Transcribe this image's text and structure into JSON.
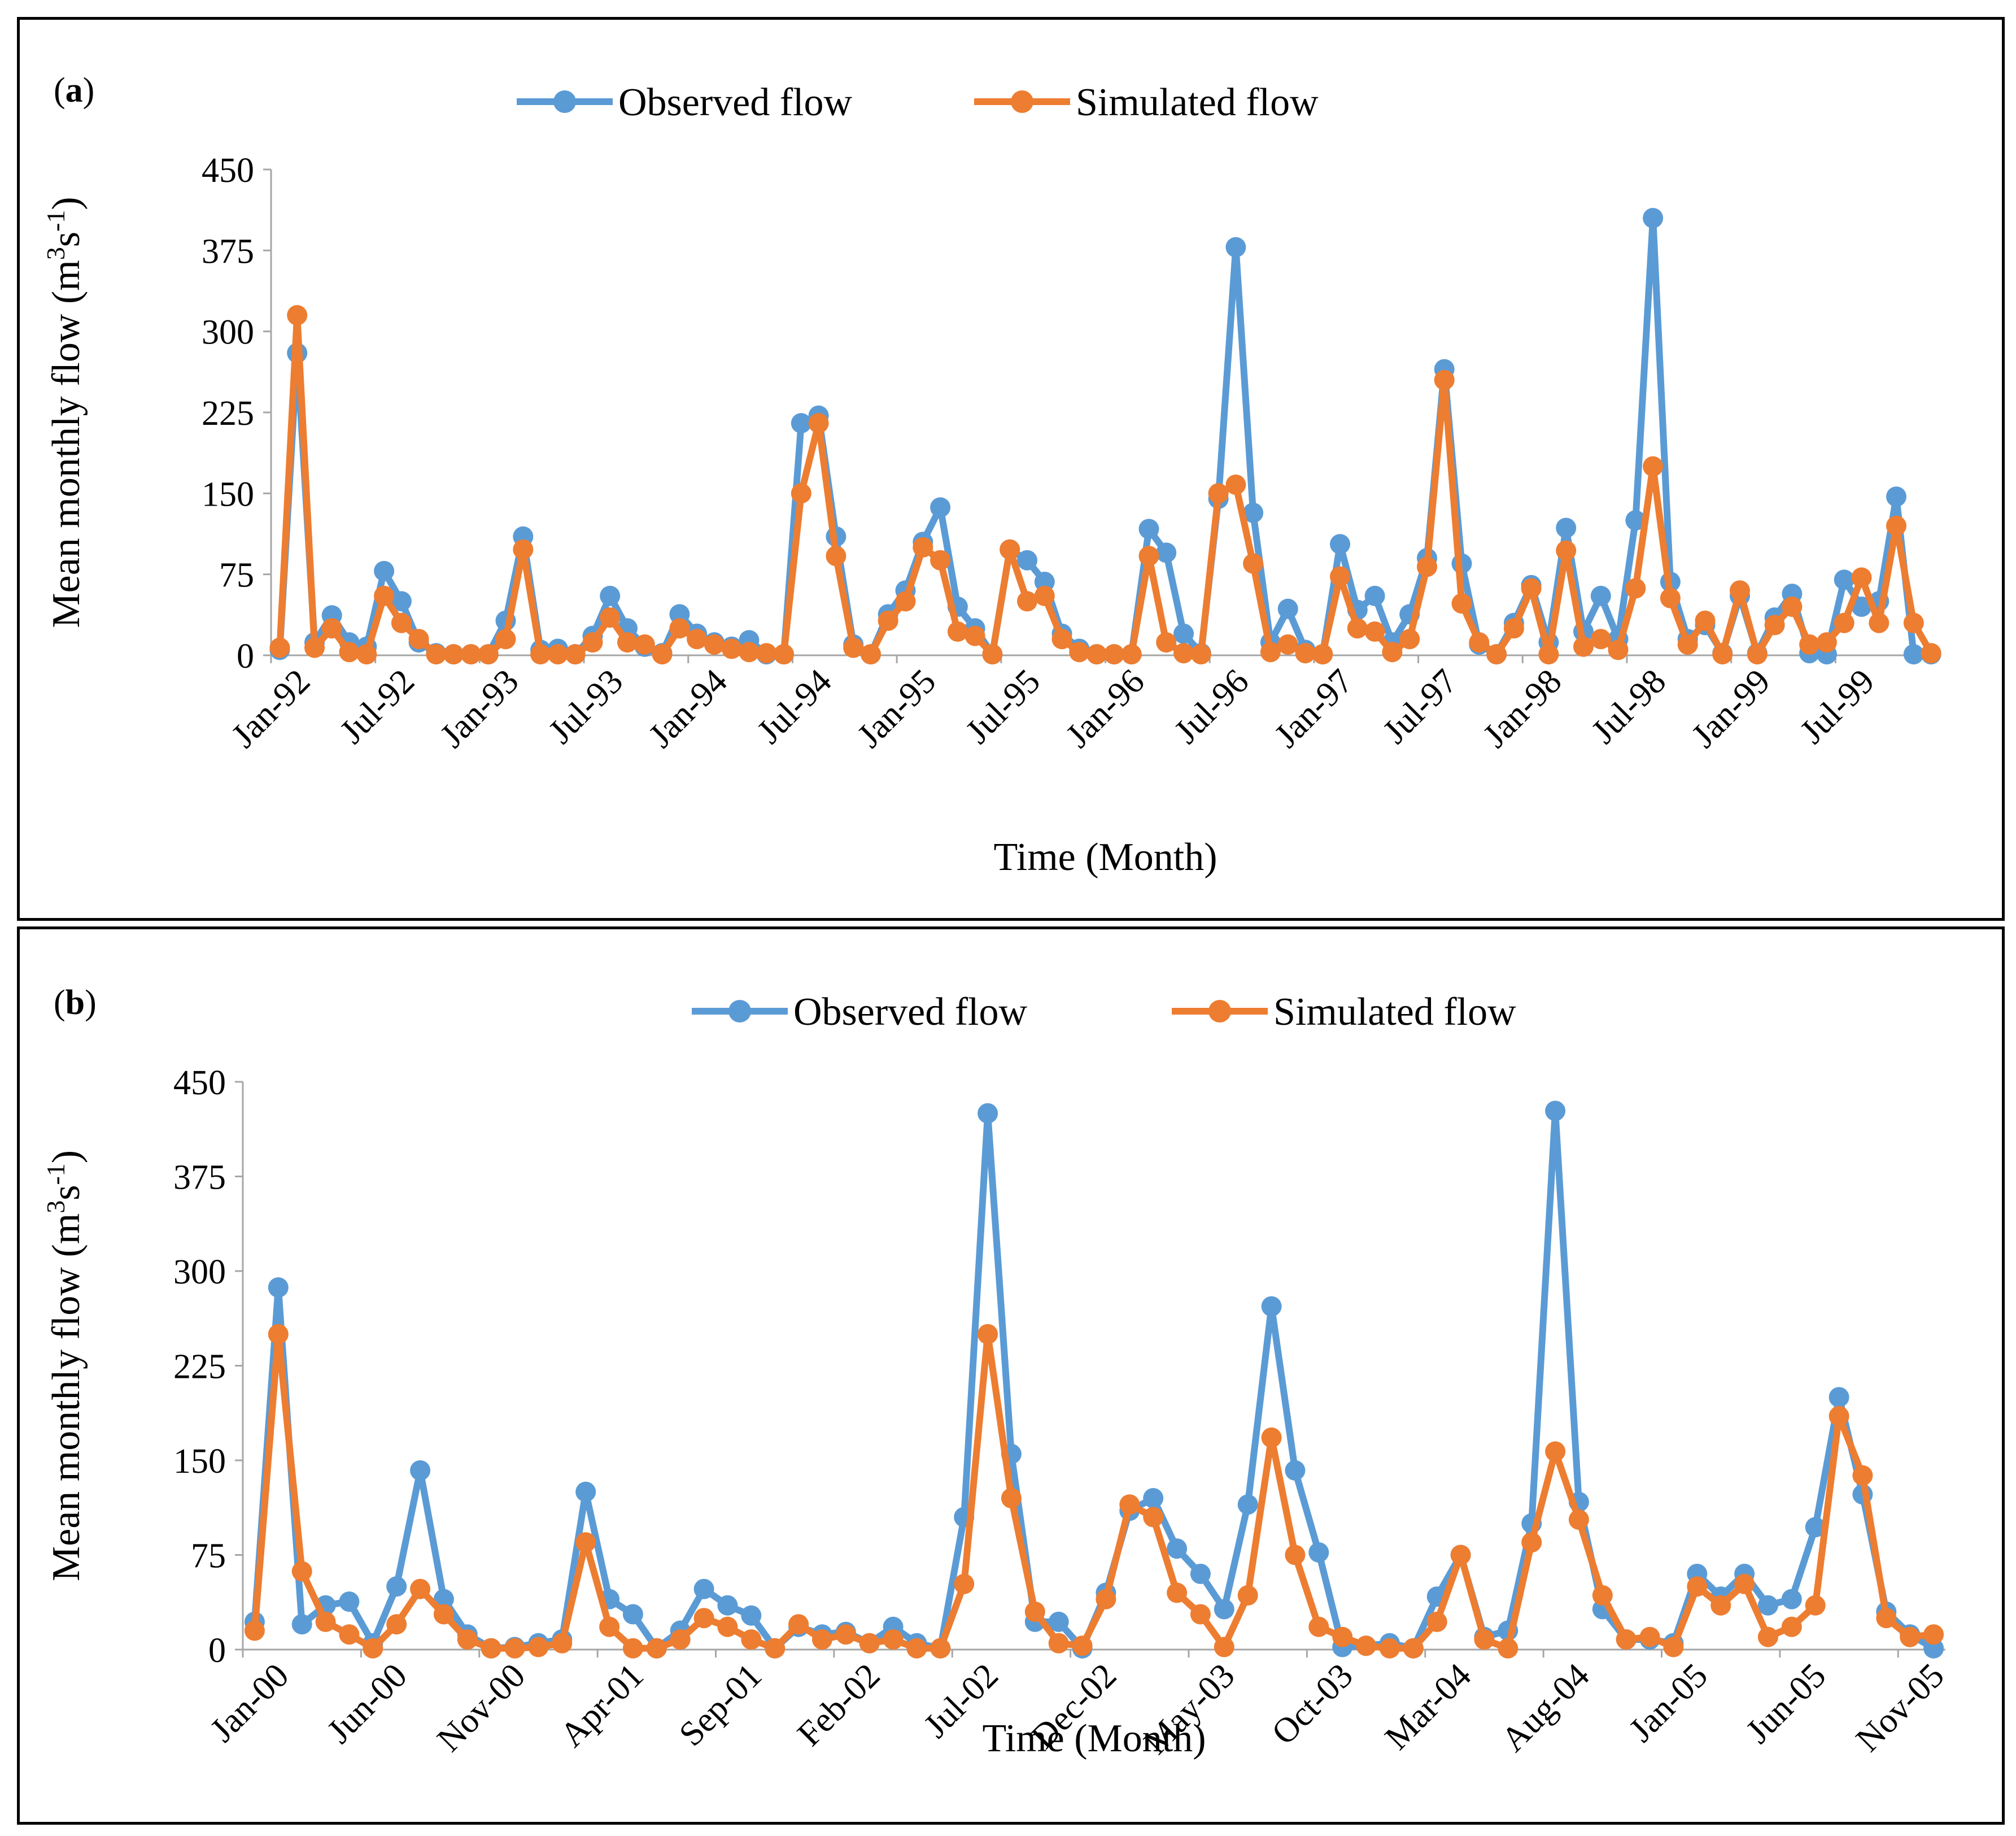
{
  "colors": {
    "observed": "#5B9BD5",
    "simulated": "#ED7D31",
    "axis": "#A6A6A6"
  },
  "chart_data": [
    {
      "type": "line",
      "panel_label": "a",
      "title": "",
      "xlabel": "Time (Month)",
      "ylabel": "Mean monthly flow (m3s-1)",
      "ylabel_parts": {
        "main": "Mean monthly flow (m",
        "sup1": "3",
        "mid": "s",
        "sup2": "-1",
        "end": ")"
      },
      "ylim": [
        0,
        450
      ],
      "yticks": [
        0,
        75,
        150,
        225,
        300,
        375,
        450
      ],
      "legend": [
        "Observed flow",
        "Simulated flow"
      ],
      "x_tick_labels": [
        "Jan-92",
        "Jul-92",
        "Jan-93",
        "Jul-93",
        "Jan-94",
        "Jul-94",
        "Jan-95",
        "Jul-95",
        "Jan-96",
        "Jul-96",
        "Jan-97",
        "Jul-97",
        "Jan-98",
        "Jul-98",
        "Jan-99",
        "Jul-99"
      ],
      "tick_step": 6,
      "series": [
        {
          "name": "Observed flow",
          "values": [
            5,
            280,
            12,
            37,
            12,
            8,
            78,
            50,
            12,
            2,
            1,
            1,
            1,
            32,
            110,
            5,
            6,
            1,
            18,
            55,
            25,
            8,
            2,
            38,
            20,
            12,
            8,
            14,
            1,
            1,
            215,
            222,
            110,
            10,
            1,
            38,
            60,
            105,
            137,
            45,
            25,
            1,
            98,
            88,
            68,
            20,
            6,
            1,
            1,
            1,
            117,
            95,
            20,
            2,
            145,
            378,
            132,
            12,
            43,
            5,
            1,
            103,
            42,
            55,
            12,
            38,
            90,
            265,
            85,
            10,
            1,
            30,
            65,
            12,
            118,
            22,
            55,
            15,
            125,
            405,
            68,
            15,
            28,
            2,
            55,
            2,
            35,
            57,
            2,
            1,
            70,
            45,
            50,
            147,
            1,
            1
          ]
        },
        {
          "name": "Simulated flow",
          "values": [
            7,
            315,
            7,
            25,
            3,
            1,
            55,
            30,
            15,
            1,
            1,
            1,
            1,
            15,
            98,
            1,
            1,
            1,
            12,
            35,
            12,
            10,
            1,
            25,
            15,
            10,
            6,
            3,
            2,
            1,
            150,
            215,
            92,
            7,
            1,
            32,
            50,
            100,
            88,
            22,
            18,
            1,
            98,
            50,
            55,
            15,
            3,
            1,
            1,
            1,
            92,
            12,
            2,
            1,
            150,
            158,
            85,
            3,
            10,
            2,
            1,
            73,
            25,
            22,
            3,
            15,
            82,
            255,
            48,
            12,
            1,
            25,
            62,
            1,
            97,
            8,
            15,
            5,
            62,
            175,
            53,
            10,
            32,
            1,
            60,
            1,
            28,
            45,
            10,
            12,
            30,
            72,
            30,
            120,
            30,
            2
          ]
        }
      ]
    },
    {
      "type": "line",
      "panel_label": "b",
      "title": "",
      "xlabel": "Time (Month)",
      "ylabel": "Mean monthly flow (m3s-1)",
      "ylabel_parts": {
        "main": "Mean monthly flow (m",
        "sup1": "3",
        "mid": "s",
        "sup2": "-1",
        "end": ")"
      },
      "ylim": [
        0,
        450
      ],
      "yticks": [
        0,
        75,
        150,
        225,
        300,
        375,
        450
      ],
      "legend": [
        "Observed flow",
        "Simulated flow"
      ],
      "x_tick_labels": [
        "Jan-00",
        "Jun-00",
        "Nov-00",
        "Apr-01",
        "Sep-01",
        "Feb-02",
        "Jul-02",
        "Dec-02",
        "May-03",
        "Oct-03",
        "Mar-04",
        "Aug-04",
        "Jan-05",
        "Jun-05",
        "Nov-05"
      ],
      "tick_step": 5,
      "series": [
        {
          "name": "Observed flow",
          "values": [
            22,
            287,
            20,
            35,
            38,
            5,
            50,
            142,
            40,
            12,
            1,
            2,
            5,
            8,
            125,
            40,
            28,
            1,
            15,
            48,
            35,
            27,
            1,
            18,
            12,
            14,
            5,
            18,
            5,
            1,
            105,
            425,
            155,
            22,
            22,
            1,
            45,
            110,
            120,
            80,
            60,
            32,
            115,
            272,
            142,
            77,
            2,
            3,
            5,
            1,
            42,
            75,
            10,
            15,
            100,
            427,
            117,
            32,
            8,
            8,
            5,
            60,
            42,
            60,
            35,
            40,
            97,
            200,
            123,
            30,
            12,
            1
          ]
        },
        {
          "name": "Simulated flow",
          "values": [
            15,
            250,
            62,
            22,
            12,
            1,
            20,
            48,
            28,
            8,
            1,
            1,
            2,
            5,
            85,
            18,
            1,
            1,
            8,
            25,
            18,
            8,
            1,
            20,
            8,
            12,
            5,
            8,
            1,
            1,
            52,
            250,
            120,
            30,
            5,
            3,
            40,
            115,
            105,
            45,
            28,
            2,
            43,
            168,
            75,
            18,
            10,
            3,
            1,
            1,
            22,
            75,
            8,
            1,
            85,
            157,
            103,
            43,
            8,
            10,
            2,
            50,
            35,
            52,
            10,
            18,
            35,
            185,
            138,
            25,
            10,
            12
          ]
        }
      ]
    }
  ]
}
